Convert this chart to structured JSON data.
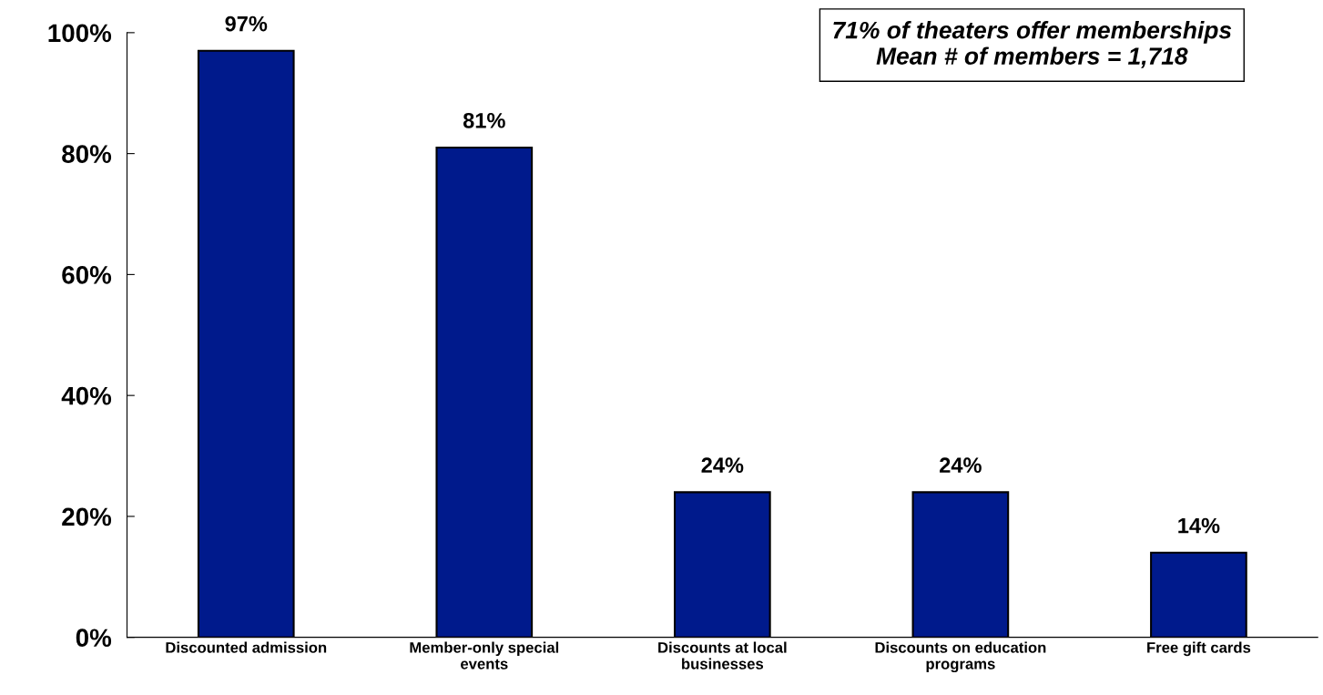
{
  "chart_data": {
    "type": "bar",
    "categories": [
      "Discounted admission",
      "Member-only special\nevents",
      "Discounts at local\nbusinesses",
      "Discounts on education\nprograms",
      "Free gift cards"
    ],
    "values": [
      97,
      81,
      24,
      24,
      14
    ],
    "color": "#001a8c",
    "value_labels": [
      "97%",
      "81%",
      "24%",
      "24%",
      "14%"
    ],
    "ylim": [
      0,
      100
    ],
    "yticks": [
      {
        "value": 0,
        "label": "0%"
      },
      {
        "value": 20,
        "label": "20%"
      },
      {
        "value": 40,
        "label": "40%"
      },
      {
        "value": 60,
        "label": "60%"
      },
      {
        "value": 80,
        "label": "80%"
      },
      {
        "value": 100,
        "label": "100%"
      }
    ],
    "annotations": [
      "71% of theaters offer memberships",
      "Mean # of members = 1,718"
    ],
    "grid": false,
    "legend": false
  }
}
